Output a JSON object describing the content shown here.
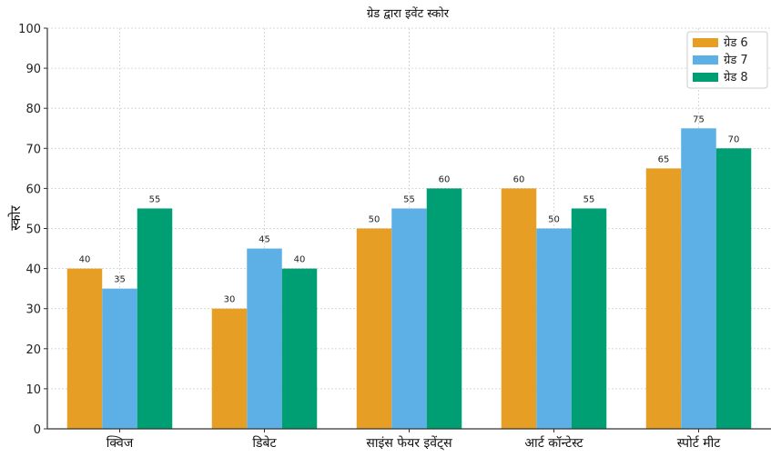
{
  "chart_data": {
    "type": "bar",
    "title": "ग्रेड द्वारा इवेंट स्कोर",
    "xlabel": "",
    "ylabel": "स्कोर",
    "categories": [
      "क्विज",
      "डिबेट",
      "साइंस फेयर इवेंट्स",
      "आर्ट कॉन्टेस्ट",
      "स्पोर्ट मीट"
    ],
    "series": [
      {
        "name": "ग्रेड 6",
        "color": "#E69F24",
        "values": [
          40,
          30,
          50,
          60,
          65
        ]
      },
      {
        "name": "ग्रेड 7",
        "color": "#5DB0E6",
        "values": [
          35,
          45,
          55,
          50,
          75
        ]
      },
      {
        "name": "ग्रेड 8",
        "color": "#009E73",
        "values": [
          55,
          40,
          60,
          55,
          70
        ]
      }
    ],
    "ylim": [
      0,
      100
    ],
    "yticks": [
      0,
      10,
      20,
      30,
      40,
      50,
      60,
      70,
      80,
      90,
      100
    ],
    "grid": true,
    "legend_position": "top-right",
    "data_labels": true
  }
}
